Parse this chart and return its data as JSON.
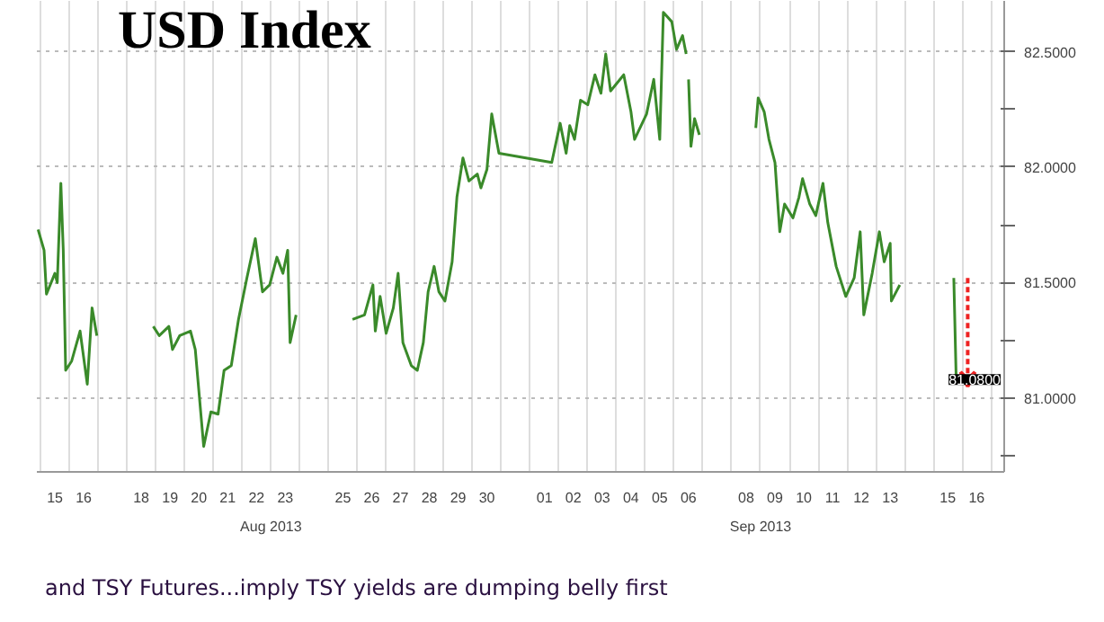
{
  "chart_data": {
    "type": "line",
    "title": "USD Index",
    "annotations": [
      "Aug 2013",
      "Sep 2013",
      "and TSY Futures...imply TSY yields are dumping belly first",
      "81.0800"
    ],
    "xlim": [
      "2013-08-14T21:00",
      "2013-09-17T11:00"
    ],
    "ylim": [
      80.68,
      82.72
    ],
    "xticks": [
      {
        "value": "2013-08-15T12:00",
        "label": "15"
      },
      {
        "value": "2013-08-16T12:00",
        "label": "16"
      },
      {
        "value": "2013-08-18T12:00",
        "label": "18"
      },
      {
        "value": "2013-08-19T12:00",
        "label": "19"
      },
      {
        "value": "2013-08-20T12:00",
        "label": "20"
      },
      {
        "value": "2013-08-21T12:00",
        "label": "21"
      },
      {
        "value": "2013-08-22T12:00",
        "label": "22"
      },
      {
        "value": "2013-08-23T12:00",
        "label": "23"
      },
      {
        "value": "2013-08-25T12:00",
        "label": "25"
      },
      {
        "value": "2013-08-26T12:00",
        "label": "26"
      },
      {
        "value": "2013-08-27T12:00",
        "label": "27"
      },
      {
        "value": "2013-08-28T12:00",
        "label": "28"
      },
      {
        "value": "2013-08-29T12:00",
        "label": "29"
      },
      {
        "value": "2013-08-30T12:00",
        "label": "30"
      },
      {
        "value": "2013-09-01T12:00",
        "label": "01"
      },
      {
        "value": "2013-09-02T12:00",
        "label": "02"
      },
      {
        "value": "2013-09-03T12:00",
        "label": "03"
      },
      {
        "value": "2013-09-04T12:00",
        "label": "04"
      },
      {
        "value": "2013-09-05T12:00",
        "label": "05"
      },
      {
        "value": "2013-09-06T12:00",
        "label": "06"
      },
      {
        "value": "2013-09-08T12:00",
        "label": "08"
      },
      {
        "value": "2013-09-09T12:00",
        "label": "09"
      },
      {
        "value": "2013-09-10T12:00",
        "label": "10"
      },
      {
        "value": "2013-09-11T12:00",
        "label": "11"
      },
      {
        "value": "2013-09-12T12:00",
        "label": "12"
      },
      {
        "value": "2013-09-13T12:00",
        "label": "13"
      },
      {
        "value": "2013-09-15T12:00",
        "label": "15"
      },
      {
        "value": "2013-09-16T12:00",
        "label": "16"
      }
    ],
    "yticks": [
      {
        "value": 80.75,
        "label": null
      },
      {
        "value": 81.0,
        "label": "81.0000"
      },
      {
        "value": 81.25,
        "label": null
      },
      {
        "value": 81.5,
        "label": "81.5000"
      },
      {
        "value": 81.75,
        "label": null
      },
      {
        "value": 82.0,
        "label": "82.0000"
      },
      {
        "value": 82.25,
        "label": null
      },
      {
        "value": 82.5,
        "label": "82.5000"
      }
    ],
    "grid": true,
    "marker": "none",
    "line_style": "solid",
    "series": [
      {
        "color": "#3a8a2a",
        "x": [
          "2013-08-14T22:00",
          "2013-08-15T03:00",
          "2013-08-15T05:00",
          "2013-08-15T12:00",
          "2013-08-15T14:00",
          "2013-08-15T17:00",
          "2013-08-15T19:00",
          "2013-08-15T21:00",
          "2013-08-16T02:00",
          "2013-08-16T09:00",
          "2013-08-16T15:00",
          "2013-08-16T19:00",
          "2013-08-16T23:00",
          "2013-08-17T12:00",
          "2013-08-18T22:00",
          "2013-08-19T03:00",
          "2013-08-19T11:00",
          "2013-08-19T14:00",
          "2013-08-19T20:00",
          "2013-08-20T05:00",
          "2013-08-20T09:00",
          "2013-08-20T16:00",
          "2013-08-20T22:00",
          "2013-08-21T04:00",
          "2013-08-21T09:00",
          "2013-08-21T15:00",
          "2013-08-21T21:00",
          "2013-08-22T04:00",
          "2013-08-22T11:00",
          "2013-08-22T17:00",
          "2013-08-22T23:00",
          "2013-08-23T05:00",
          "2013-08-23T10:00",
          "2013-08-23T14:00",
          "2013-08-23T16:00",
          "2013-08-23T21:00",
          "2013-08-24T12:00",
          "2013-08-25T20:00",
          "2013-08-26T06:00",
          "2013-08-26T13:00",
          "2013-08-26T15:00",
          "2013-08-26T19:00",
          "2013-08-27T00:00",
          "2013-08-27T06:00",
          "2013-08-27T10:00",
          "2013-08-27T14:00",
          "2013-08-27T21:00",
          "2013-08-28T02:00",
          "2013-08-28T07:00",
          "2013-08-28T11:00",
          "2013-08-28T16:00",
          "2013-08-28T20:00",
          "2013-08-29T01:00",
          "2013-08-29T07:00",
          "2013-08-29T11:00",
          "2013-08-29T16:00",
          "2013-08-29T21:00",
          "2013-08-30T04:00",
          "2013-08-30T07:00",
          "2013-08-30T12:00",
          "2013-08-30T16:00",
          "2013-08-30T22:00",
          "2013-09-01T18:00",
          "2013-09-02T01:00",
          "2013-09-02T06:00",
          "2013-09-02T09:00",
          "2013-09-02T13:00",
          "2013-09-02T18:00",
          "2013-09-03T00:00",
          "2013-09-03T06:00",
          "2013-09-03T11:00",
          "2013-09-03T15:00",
          "2013-09-03T19:00",
          "2013-09-04T06:00",
          "2013-09-04T12:00",
          "2013-09-04T15:00",
          "2013-09-05T01:00",
          "2013-09-05T07:00",
          "2013-09-05T12:00",
          "2013-09-05T15:00",
          "2013-09-05T22:00",
          "2013-09-06T02:00",
          "2013-09-06T07:00",
          "2013-09-06T10:00",
          "2013-09-06T11:00",
          "2013-09-06T12:00",
          "2013-09-06T14:00",
          "2013-09-06T17:00",
          "2013-09-06T21:00",
          "2013-09-07T12:00",
          "2013-09-08T20:00",
          "2013-09-08T22:00",
          "2013-09-09T03:00",
          "2013-09-09T07:00",
          "2013-09-09T12:00",
          "2013-09-09T16:00",
          "2013-09-09T20:00",
          "2013-09-10T03:00",
          "2013-09-10T08:00",
          "2013-09-10T11:00",
          "2013-09-10T17:00",
          "2013-09-10T22:00",
          "2013-09-11T04:00",
          "2013-09-11T08:00",
          "2013-09-11T15:00",
          "2013-09-11T23:00",
          "2013-09-12T06:00",
          "2013-09-12T11:00",
          "2013-09-12T14:00",
          "2013-09-12T21:00",
          "2013-09-13T03:00",
          "2013-09-13T07:00",
          "2013-09-13T12:00",
          "2013-09-13T13:00",
          "2013-09-13T17:00",
          "2013-09-13T20:00",
          "2013-09-14T12:00",
          "2013-09-15T17:00",
          "2013-09-15T19:00"
        ],
        "values": [
          81.73,
          81.64,
          81.45,
          81.54,
          81.5,
          81.93,
          81.64,
          81.12,
          81.16,
          81.29,
          81.06,
          81.39,
          81.27,
          null,
          81.31,
          81.27,
          81.31,
          81.21,
          81.27,
          81.29,
          81.21,
          80.79,
          80.94,
          80.93,
          81.12,
          81.14,
          81.34,
          81.52,
          81.69,
          81.46,
          81.49,
          81.61,
          81.54,
          81.64,
          81.24,
          81.36,
          null,
          81.34,
          81.36,
          81.49,
          81.29,
          81.44,
          81.28,
          81.39,
          81.54,
          81.24,
          81.14,
          81.12,
          81.24,
          81.46,
          81.57,
          81.46,
          81.42,
          81.59,
          81.87,
          82.04,
          81.94,
          81.97,
          81.91,
          81.99,
          82.23,
          82.06,
          82.02,
          82.19,
          82.06,
          82.18,
          82.12,
          82.29,
          82.27,
          82.4,
          82.32,
          82.49,
          82.33,
          82.4,
          82.24,
          82.12,
          82.23,
          82.38,
          82.12,
          82.67,
          82.63,
          82.51,
          82.57,
          82.49,
          null,
          82.38,
          82.09,
          82.21,
          82.14,
          null,
          82.17,
          82.3,
          82.24,
          82.12,
          82.02,
          81.72,
          81.84,
          81.78,
          81.87,
          81.95,
          81.84,
          81.79,
          81.93,
          81.76,
          81.57,
          81.44,
          81.52,
          81.72,
          81.36,
          81.54,
          81.72,
          81.59,
          81.67,
          81.42,
          81.46,
          81.49,
          null,
          81.52,
          81.08
        ]
      }
    ]
  }
}
